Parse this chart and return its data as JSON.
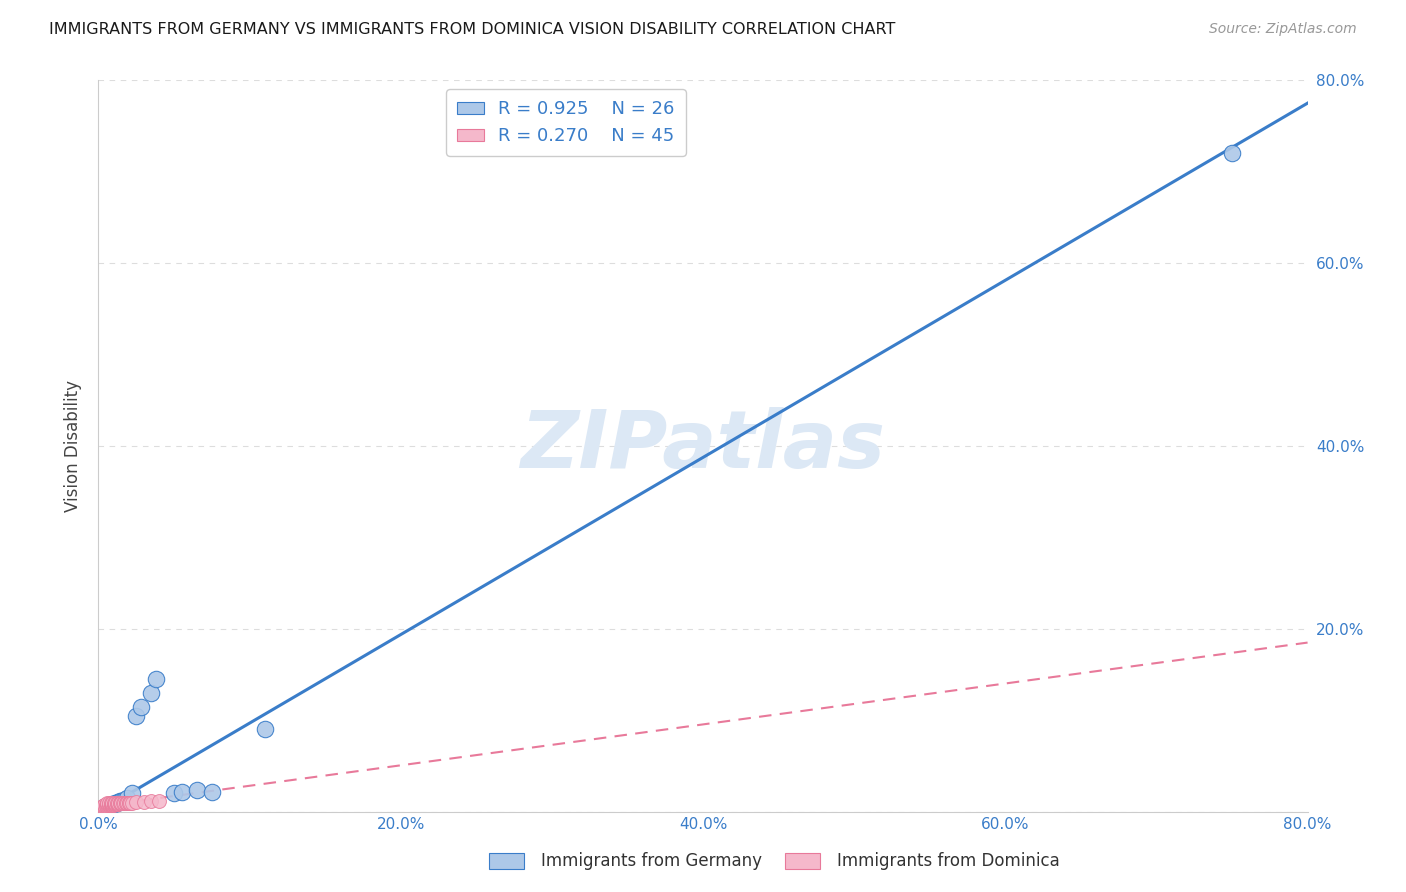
{
  "title": "IMMIGRANTS FROM GERMANY VS IMMIGRANTS FROM DOMINICA VISION DISABILITY CORRELATION CHART",
  "source": "Source: ZipAtlas.com",
  "ylabel": "Vision Disability",
  "xlim": [
    0.0,
    0.8
  ],
  "ylim": [
    0.0,
    0.8
  ],
  "xticks": [
    0.0,
    0.2,
    0.4,
    0.6,
    0.8
  ],
  "yticks": [
    0.2,
    0.4,
    0.6,
    0.8
  ],
  "xticklabels": [
    "0.0%",
    "20.0%",
    "40.0%",
    "60.0%",
    "80.0%"
  ],
  "right_yticklabels": [
    "20.0%",
    "40.0%",
    "60.0%",
    "80.0%"
  ],
  "germany_fill_color": "#adc8e8",
  "dominica_fill_color": "#f5b8cb",
  "germany_line_color": "#3a7dc9",
  "dominica_line_color": "#e8799a",
  "R_germany": 0.925,
  "N_germany": 26,
  "R_dominica": 0.27,
  "N_dominica": 45,
  "watermark": "ZIPatlas",
  "watermark_color": "#dce8f5",
  "germany_scatter_x": [
    0.003,
    0.004,
    0.005,
    0.006,
    0.007,
    0.008,
    0.009,
    0.01,
    0.011,
    0.012,
    0.013,
    0.014,
    0.015,
    0.017,
    0.019,
    0.022,
    0.025,
    0.028,
    0.035,
    0.038,
    0.05,
    0.055,
    0.065,
    0.075,
    0.11,
    0.75
  ],
  "germany_scatter_y": [
    0.004,
    0.005,
    0.005,
    0.006,
    0.005,
    0.007,
    0.008,
    0.008,
    0.01,
    0.01,
    0.011,
    0.012,
    0.012,
    0.013,
    0.015,
    0.02,
    0.105,
    0.115,
    0.13,
    0.145,
    0.02,
    0.022,
    0.024,
    0.022,
    0.09,
    0.72
  ],
  "dominica_scatter_x": [
    0.002,
    0.003,
    0.003,
    0.004,
    0.004,
    0.005,
    0.005,
    0.006,
    0.006,
    0.006,
    0.007,
    0.007,
    0.007,
    0.008,
    0.008,
    0.008,
    0.009,
    0.009,
    0.009,
    0.01,
    0.01,
    0.01,
    0.011,
    0.011,
    0.012,
    0.012,
    0.013,
    0.013,
    0.014,
    0.014,
    0.015,
    0.015,
    0.016,
    0.017,
    0.018,
    0.018,
    0.019,
    0.02,
    0.02,
    0.021,
    0.022,
    0.025,
    0.03,
    0.035,
    0.04
  ],
  "dominica_scatter_y": [
    0.005,
    0.005,
    0.006,
    0.006,
    0.007,
    0.006,
    0.007,
    0.007,
    0.008,
    0.009,
    0.007,
    0.008,
    0.009,
    0.007,
    0.008,
    0.009,
    0.007,
    0.008,
    0.009,
    0.007,
    0.008,
    0.009,
    0.008,
    0.009,
    0.008,
    0.009,
    0.008,
    0.009,
    0.009,
    0.01,
    0.009,
    0.01,
    0.009,
    0.01,
    0.009,
    0.01,
    0.01,
    0.009,
    0.01,
    0.01,
    0.01,
    0.011,
    0.011,
    0.012,
    0.012
  ],
  "germany_line_x": [
    0.0,
    0.8
  ],
  "germany_line_y": [
    0.0,
    0.775
  ],
  "dominica_line_x": [
    0.0,
    0.8
  ],
  "dominica_line_y": [
    0.006,
    0.185
  ],
  "legend_label_germany": "Immigrants from Germany",
  "legend_label_dominica": "Immigrants from Dominica",
  "background_color": "#ffffff",
  "grid_color": "#dddddd",
  "tick_color": "#3a7dc9"
}
